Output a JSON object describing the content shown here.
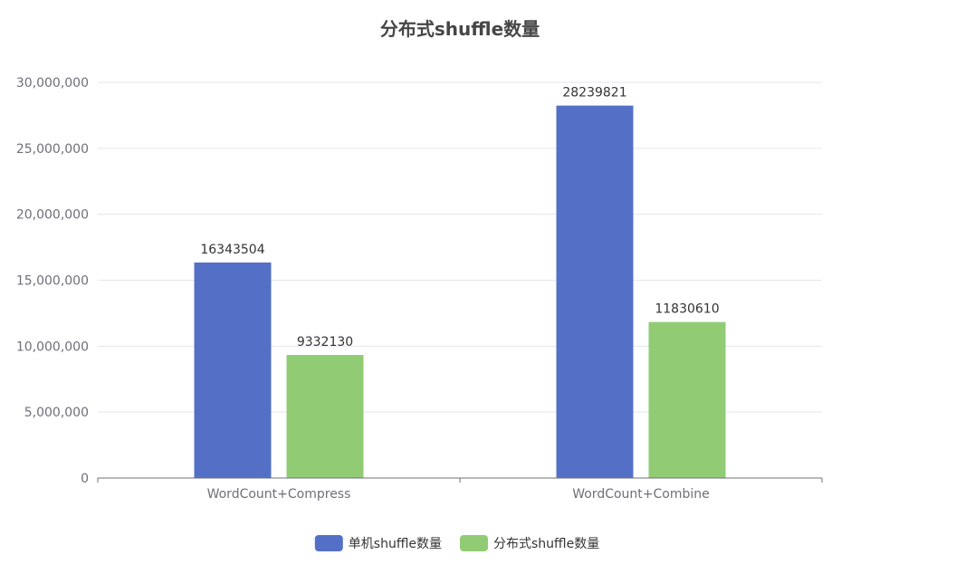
{
  "chart_data": {
    "type": "bar",
    "title": "分布式shuffle数量",
    "categories": [
      "WordCount+Compress",
      "WordCount+Combine"
    ],
    "series": [
      {
        "name": "单机shuffle数量",
        "values": [
          16343504,
          28239821
        ],
        "color": "#5470c6"
      },
      {
        "name": "分布式shuffle数量",
        "values": [
          9332130,
          11830610
        ],
        "color": "#91cc75"
      }
    ],
    "ylim": [
      0,
      30000000
    ],
    "yticks": [
      0,
      5000000,
      10000000,
      15000000,
      20000000,
      25000000,
      30000000
    ],
    "ytick_labels": [
      "0",
      "5,000,000",
      "10,000,000",
      "15,000,000",
      "20,000,000",
      "25,000,000",
      "30,000,000"
    ],
    "grid": true,
    "legend_position": "bottom-center",
    "show_data_labels": true
  }
}
